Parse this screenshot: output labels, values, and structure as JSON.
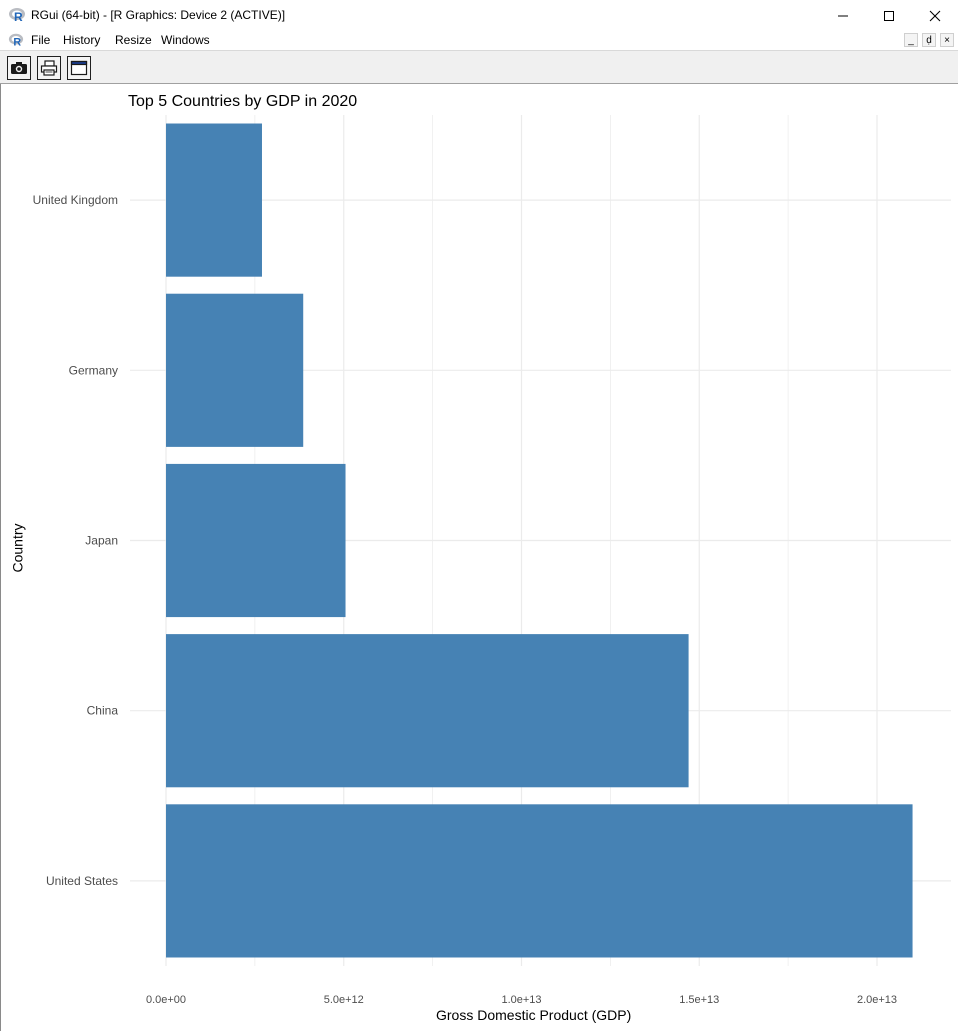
{
  "window": {
    "title": "RGui (64-bit) - [R Graphics: Device 2 (ACTIVE)]",
    "app_icon": "r-logo-icon",
    "controls": [
      "minimize-icon",
      "maximize-icon",
      "close-icon"
    ]
  },
  "menubar": {
    "items": [
      "File",
      "History",
      "Resize",
      "Windows"
    ],
    "mdi_controls": [
      "_",
      "ḍ",
      "×"
    ]
  },
  "toolbar": {
    "buttons": [
      "camera-icon",
      "printer-icon",
      "window-icon"
    ]
  },
  "colors": {
    "bar": "#4682B4",
    "grid": "#ebebeb",
    "axis_text": "#4d4d4d"
  },
  "chart_data": {
    "type": "bar",
    "orientation": "horizontal",
    "title": "Top 5 Countries by GDP in 2020",
    "xlabel": "Gross Domestic Product (GDP)",
    "ylabel": "Country",
    "categories": [
      "United States",
      "China",
      "Japan",
      "Germany",
      "United Kingdom"
    ],
    "values": [
      21000000000000,
      14700000000000,
      5050000000000,
      3860000000000,
      2700000000000
    ],
    "xlim": [
      0,
      22000000000000
    ],
    "x_ticks": [
      0,
      5000000000000,
      10000000000000,
      15000000000000,
      20000000000000
    ],
    "x_tick_labels": [
      "0.0e+00",
      "5.0e+12",
      "1.0e+13",
      "1.5e+13",
      "2.0e+13"
    ],
    "grid": true,
    "legend": "none"
  }
}
